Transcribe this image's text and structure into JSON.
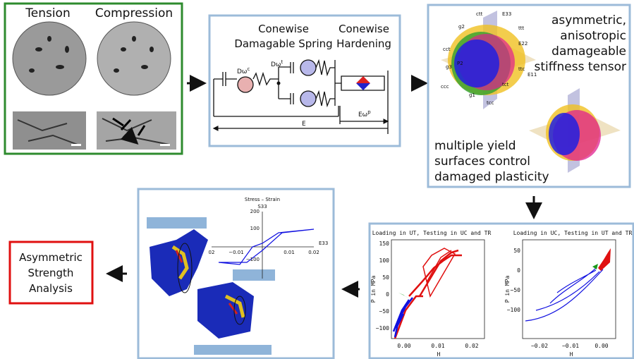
{
  "microct": {
    "tension": "Tension",
    "compression": "Compression"
  },
  "model": {
    "left_title": [
      "Conewise",
      "Damagable Spring"
    ],
    "right_title": [
      "Conewise",
      "Hardening"
    ],
    "dwc": {
      "text": "Dω",
      "sup": "c"
    },
    "dwt": {
      "text": "Dω",
      "sup": "t"
    },
    "ewp": {
      "text": "Eω",
      "sup": "p"
    },
    "e": "E"
  },
  "tensor": {
    "caption": [
      "asymmetric,",
      "anisotropic",
      "damageable",
      "stiffness tensor"
    ],
    "yield": [
      "multiple yield",
      "surfaces control",
      "damaged plasticity"
    ],
    "axis_labels": [
      "ctt",
      "ttt",
      "cct",
      "ttc",
      "ccc",
      "tcc",
      "tct",
      "g2",
      "g3",
      "g1",
      "P2",
      "E11",
      "E22",
      "E33"
    ]
  },
  "fe": {
    "title": "Stress – Strain",
    "ylabel": "S33",
    "xlabel": "E33",
    "yticks": [
      "200",
      "100",
      "−100"
    ],
    "xticks": [
      "02",
      "−0.01",
      "0.01",
      "0.02"
    ]
  },
  "tests": {
    "left": {
      "title": "Loading in UT, Testing in UC and TR",
      "ylabel": "P in MPa",
      "xlabel": "H",
      "yticks": [
        "150",
        "100",
        "50",
        "0",
        "−50",
        "−100"
      ],
      "xticks": [
        "0.00",
        "0.01",
        "0.02"
      ]
    },
    "right": {
      "title": "Loading in UC, Testing in UT and TR",
      "ylabel": "P in MPa",
      "xlabel": "H",
      "yticks": [
        "50",
        "0",
        "−50",
        "−100"
      ],
      "xticks": [
        "−0.02",
        "−0.01",
        "0.00"
      ]
    }
  },
  "result": [
    "Asymmetric",
    "Strength",
    "Analysis"
  ]
}
